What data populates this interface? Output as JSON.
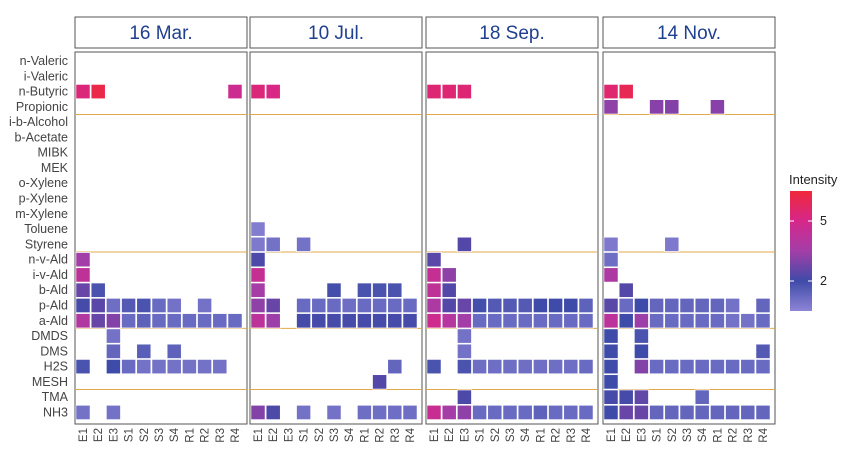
{
  "chart_data": {
    "type": "heatmap",
    "facets": [
      "16 Mar.",
      "10 Jul.",
      "18 Sep.",
      "14 Nov."
    ],
    "rows": [
      "n-Valeric",
      "i-Valeric",
      "n-Butyric",
      "Propionic",
      "i-b-Alcohol",
      "b-Acetate",
      "MIBK",
      "MEK",
      "o-Xylene",
      "p-Xylene",
      "m-Xylene",
      "Toluene",
      "Styrene",
      "n-v-Ald",
      "i-v-Ald",
      "b-Ald",
      "p-Ald",
      "a-Ald",
      "DMDS",
      "DMS",
      "H2S",
      "MESH",
      "TMA",
      "NH3"
    ],
    "columns": [
      "E1",
      "E2",
      "E3",
      "S1",
      "S2",
      "S3",
      "S4",
      "R1",
      "R2",
      "R3",
      "R4"
    ],
    "row_groups": [
      [
        "n-Valeric",
        "i-Valeric",
        "n-Butyric",
        "Propionic"
      ],
      [
        "i-b-Alcohol",
        "b-Acetate",
        "MIBK",
        "MEK",
        "o-Xylene",
        "p-Xylene",
        "m-Xylene",
        "Toluene",
        "Styrene"
      ],
      [
        "n-v-Ald",
        "i-v-Ald",
        "b-Ald",
        "p-Ald",
        "a-Ald"
      ],
      [
        "DMDS",
        "DMS",
        "H2S",
        "MESH"
      ],
      [
        "TMA",
        "NH3"
      ]
    ],
    "legend": {
      "title": "Intensity",
      "ticks": [
        5,
        2
      ],
      "range": [
        0.5,
        6.5
      ],
      "colors": [
        "#8e85d6",
        "#3f4ba8",
        "#a33ea8",
        "#d6278a",
        "#f0283a"
      ],
      "position": "right"
    },
    "grid": false,
    "values": {
      "16 Mar.": {
        "n-Butyric": {
          "E1": 5.3,
          "E2": 6.2,
          "R4": 4.7
        },
        "n-v-Ald": {
          "E1": 3.5
        },
        "i-v-Ald": {
          "E1": 4.3
        },
        "b-Ald": {
          "E1": 2.6,
          "E2": 1.8
        },
        "p-Ald": {
          "E1": 2.1,
          "E2": 2.4,
          "E3": 1.1,
          "S1": 1.6,
          "S2": 1.8,
          "S3": 1.2,
          "S4": 1.0,
          "R2": 1.0
        },
        "a-Ald": {
          "E1": 3.9,
          "E2": 2.6,
          "E3": 3.0,
          "S1": 1.2,
          "S2": 1.4,
          "S3": 1.2,
          "S4": 1.2,
          "R1": 1.2,
          "R2": 1.2,
          "R3": 1.2,
          "R4": 1.2
        },
        "DMDS": {
          "E3": 1.0
        },
        "DMS": {
          "E3": 1.3,
          "S2": 1.5,
          "S4": 1.4
        },
        "H2S": {
          "E1": 1.8,
          "E3": 2.0,
          "S1": 1.2,
          "S2": 1.0,
          "S3": 1.0,
          "S4": 1.0,
          "R1": 1.0,
          "R2": 1.0,
          "R3": 1.0
        },
        "NH3": {
          "E1": 1.0,
          "E3": 1.0
        }
      },
      "10 Jul.": {
        "n-Butyric": {
          "E1": 5.3,
          "E2": 5.1
        },
        "Toluene": {
          "E1": 0.7
        },
        "Styrene": {
          "E1": 0.8,
          "E2": 1.0,
          "S1": 1.0
        },
        "n-v-Ald": {
          "E1": 2.2
        },
        "i-v-Ald": {
          "E1": 4.5
        },
        "b-Ald": {
          "E1": 3.6,
          "S3": 1.9,
          "R1": 1.8,
          "R2": 1.8,
          "R3": 1.8
        },
        "p-Ald": {
          "E1": 3.2,
          "E2": 2.6,
          "S1": 1.2,
          "S2": 1.2,
          "S3": 1.2,
          "S4": 1.1,
          "R1": 1.2,
          "R2": 1.2,
          "R3": 1.2,
          "R4": 1.2
        },
        "a-Ald": {
          "E1": 4.2,
          "E2": 3.4,
          "S1": 2.1,
          "S2": 2.1,
          "S3": 2.1,
          "S4": 2.1,
          "R1": 2.1,
          "R2": 2.1,
          "R3": 2.1,
          "R4": 2.1
        },
        "H2S": {
          "R3": 1.3
        },
        "MESH": {
          "R2": 2.3
        },
        "NH3": {
          "E1": 3.0,
          "E2": 2.2,
          "S1": 1.0,
          "S3": 1.0,
          "R1": 1.1,
          "R2": 1.1,
          "R3": 1.1,
          "R4": 1.1
        }
      },
      "18 Sep.": {
        "n-Butyric": {
          "E1": 5.4,
          "E2": 5.4,
          "E3": 5.4
        },
        "Styrene": {
          "E3": 2.3
        },
        "n-v-Ald": {
          "E1": 2.4
        },
        "i-v-Ald": {
          "E1": 4.5,
          "E2": 3.2
        },
        "b-Ald": {
          "E1": 4.3,
          "E2": 2.3
        },
        "p-Ald": {
          "E1": 3.8,
          "E2": 2.3,
          "E3": 2.6,
          "S1": 1.9,
          "S2": 1.6,
          "S3": 1.6,
          "S4": 1.6,
          "R1": 2.0,
          "R2": 2.0,
          "R3": 2.0,
          "R4": 1.4
        },
        "a-Ald": {
          "E1": 4.8,
          "E2": 4.0,
          "E3": 3.5,
          "S1": 1.2,
          "S2": 1.2,
          "S3": 1.2,
          "S4": 1.2,
          "R1": 1.2,
          "R2": 1.2,
          "R3": 1.2,
          "R4": 1.2
        },
        "DMDS": {
          "E3": 1.0
        },
        "DMS": {
          "E3": 1.0
        },
        "H2S": {
          "E1": 1.8,
          "E3": 1.8,
          "S1": 1.1,
          "S2": 1.1,
          "S3": 1.1,
          "S4": 1.1,
          "R1": 1.1,
          "R2": 1.1,
          "R3": 1.1,
          "R4": 1.2
        },
        "TMA": {
          "E3": 2.2
        },
        "NH3": {
          "E1": 4.6,
          "E2": 3.6,
          "E3": 3.2,
          "S1": 1.2,
          "S2": 1.2,
          "S3": 1.2,
          "S4": 1.2,
          "R1": 1.4,
          "R2": 1.2,
          "R3": 1.2,
          "R4": 1.2
        }
      },
      "14 Nov.": {
        "n-Butyric": {
          "E1": 5.5,
          "E2": 6.0
        },
        "Propionic": {
          "E1": 3.2,
          "S1": 3.1,
          "S2": 3.0,
          "R1": 3.1
        },
        "Styrene": {
          "E1": 0.8,
          "S2": 0.8
        },
        "n-v-Ald": {
          "E1": 1.1
        },
        "i-v-Ald": {
          "E1": 3.8
        },
        "b-Ald": {
          "E2": 2.3
        },
        "p-Ald": {
          "E1": 2.4,
          "E2": 1.2,
          "E3": 2.0,
          "S1": 1.3,
          "S2": 1.3,
          "S3": 1.3,
          "S4": 1.3,
          "R1": 1.3,
          "R2": 1.0,
          "R4": 1.3
        },
        "a-Ald": {
          "E1": 4.2,
          "E2": 2.0,
          "E3": 3.4,
          "S1": 1.2,
          "S2": 1.2,
          "S3": 1.2,
          "S4": 1.2,
          "R1": 1.2,
          "R2": 1.0,
          "R3": 1.0,
          "R4": 1.2
        },
        "DMDS": {
          "E1": 2.0,
          "E3": 1.8
        },
        "DMS": {
          "E1": 2.0,
          "E3": 2.0,
          "R4": 1.6
        },
        "H2S": {
          "E1": 2.0,
          "E3": 3.0,
          "S1": 1.2,
          "S2": 1.2,
          "S3": 1.2,
          "S4": 1.2,
          "R1": 1.2,
          "R2": 1.2,
          "R3": 1.2,
          "R4": 1.2
        },
        "MESH": {
          "E1": 2.0
        },
        "TMA": {
          "E1": 2.1,
          "E2": 2.1,
          "E3": 2.5,
          "S4": 1.3
        },
        "NH3": {
          "E1": 2.0,
          "E2": 2.6,
          "E3": 2.6,
          "S1": 1.3,
          "S2": 1.3,
          "S3": 1.3,
          "S4": 1.3,
          "R1": 1.3,
          "R2": 1.3,
          "R3": 1.3,
          "R4": 1.3
        }
      }
    }
  }
}
